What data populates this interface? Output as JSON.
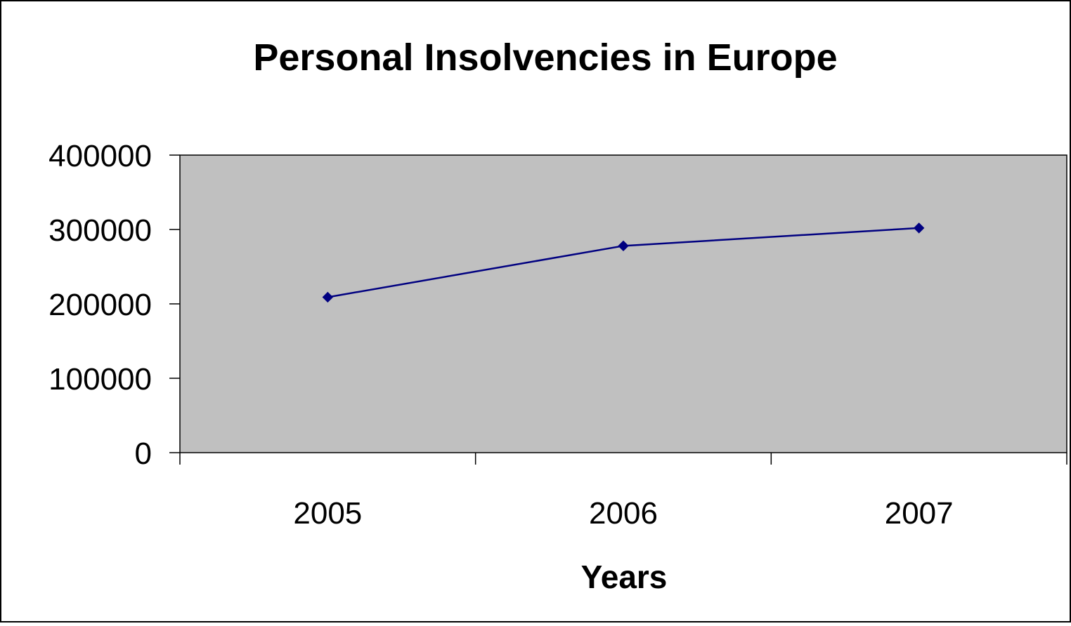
{
  "chart_data": {
    "type": "line",
    "title": "Personal Insolvencies in Europe",
    "xlabel": "Years",
    "ylabel": "",
    "categories": [
      "2005",
      "2006",
      "2007"
    ],
    "series": [
      {
        "values": [
          209000,
          278000,
          302000
        ]
      }
    ],
    "ylim": [
      0,
      400000
    ],
    "yticks": [
      "0",
      "100000",
      "200000",
      "300000",
      "400000"
    ],
    "y_tick_values": [
      0,
      100000,
      200000,
      300000,
      400000
    ],
    "grid": false,
    "legend": "none",
    "colors": {
      "plot_background": "#c0c0c0",
      "line": "#000080",
      "frame": "#000000"
    }
  }
}
